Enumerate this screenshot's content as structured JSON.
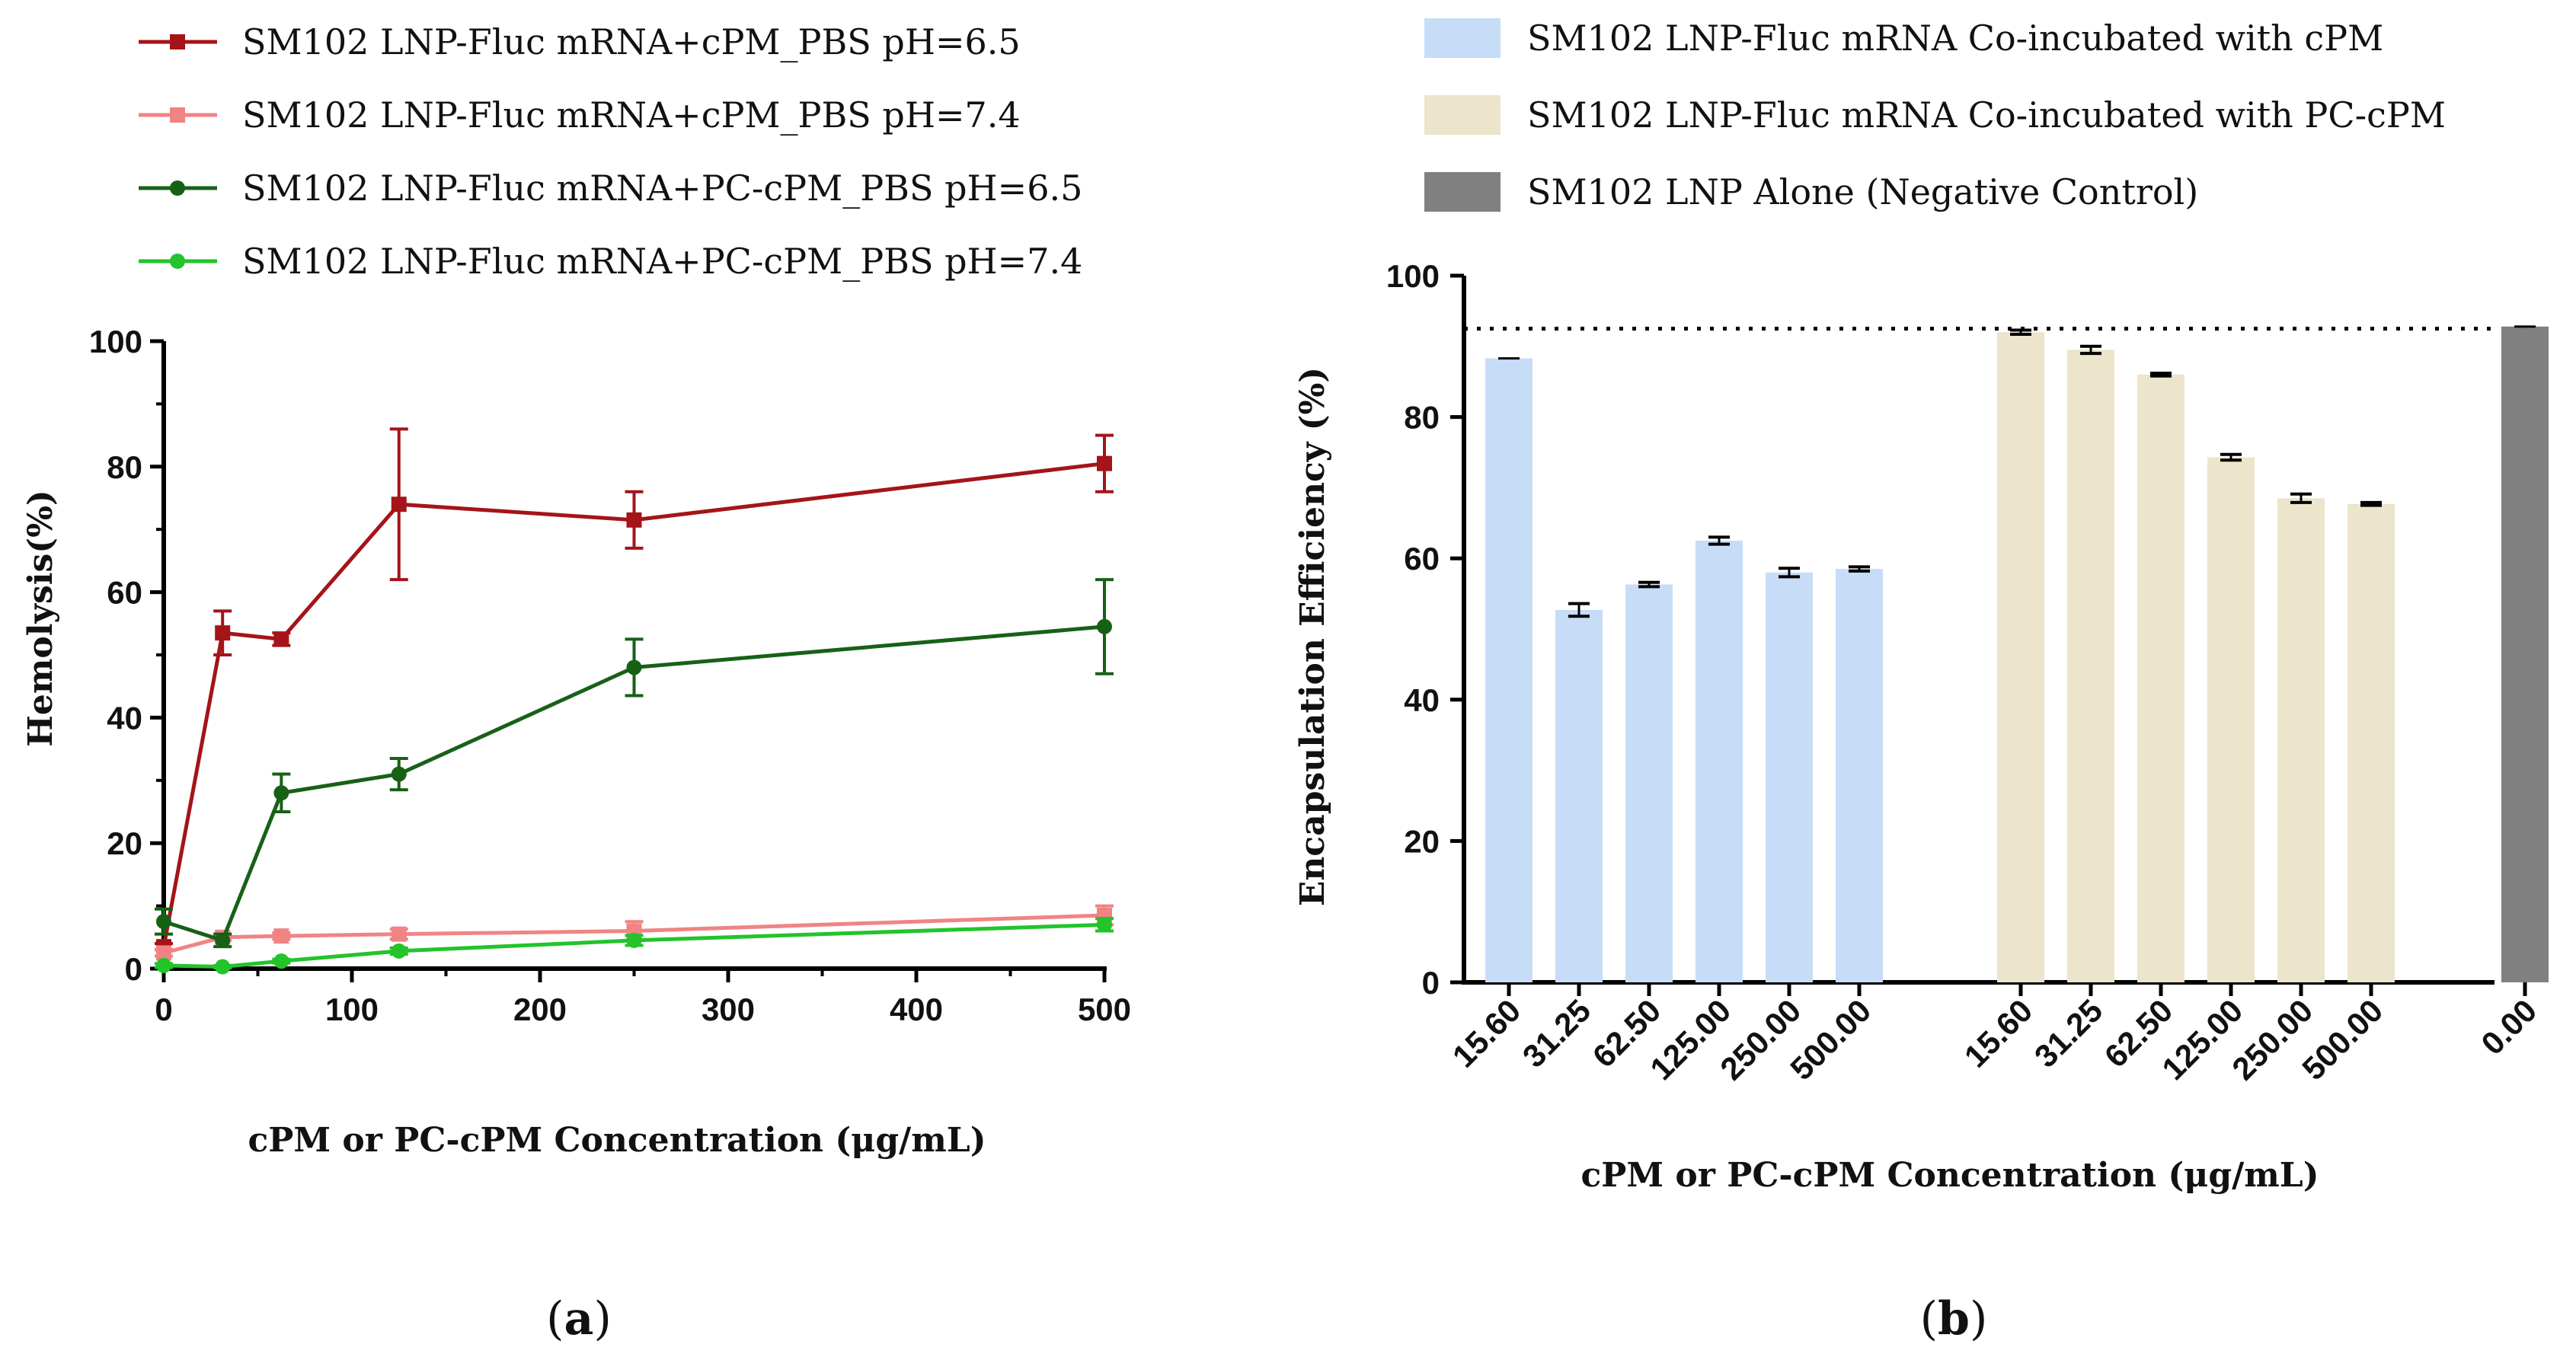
{
  "panels": {
    "a": "a",
    "b": "b"
  },
  "chart_data": [
    {
      "type": "line",
      "panel": "a",
      "xlabel": "cPM or PC-cPM Concentration (μg/mL)",
      "ylabel": "Hemolysis(%)",
      "xlim": [
        0,
        500
      ],
      "ylim": [
        0,
        100
      ],
      "xticks": [
        0,
        100,
        200,
        300,
        400,
        500
      ],
      "yticks": [
        0,
        20,
        40,
        60,
        80,
        100
      ],
      "x": [
        0,
        31.25,
        62.5,
        125,
        250,
        500
      ],
      "series": [
        {
          "name": "SM102 LNP-Fluc mRNA+cPM_PBS pH=6.5",
          "marker": "square",
          "color": "#a41419",
          "values": [
            3.5,
            53.5,
            52.5,
            74.0,
            71.5,
            80.5
          ],
          "errors": [
            0.5,
            3.5,
            1.0,
            12.0,
            4.5,
            4.5
          ]
        },
        {
          "name": "SM102 LNP-Fluc mRNA+cPM_PBS pH=7.4",
          "marker": "square",
          "color": "#f08484",
          "values": [
            2.5,
            5.0,
            5.2,
            5.5,
            6.0,
            8.5
          ],
          "errors": [
            0.5,
            0.5,
            0.5,
            0.8,
            1.5,
            1.5
          ]
        },
        {
          "name": "SM102 LNP-Fluc mRNA+PC-cPM_PBS pH=6.5",
          "marker": "circle",
          "color": "#176117",
          "values": [
            7.5,
            4.5,
            28.0,
            31.0,
            48.0,
            54.5
          ],
          "errors": [
            2.0,
            1.0,
            3.0,
            2.5,
            4.5,
            7.5
          ]
        },
        {
          "name": "SM102 LNP-Fluc mRNA+PC-cPM_PBS pH=7.4",
          "marker": "circle",
          "color": "#22c42a",
          "values": [
            0.5,
            0.3,
            1.2,
            2.8,
            4.5,
            7.0
          ],
          "errors": [
            0.3,
            0.2,
            0.3,
            0.5,
            0.8,
            1.0
          ]
        }
      ]
    },
    {
      "type": "bar",
      "panel": "b",
      "xlabel": "cPM or PC-cPM Concentration (μg/mL)",
      "ylabel": "Encapsulation Efficiency (%)",
      "ylim": [
        0,
        100
      ],
      "yticks": [
        0,
        20,
        40,
        60,
        80,
        100
      ],
      "reference_line": 92.5,
      "groups": [
        {
          "name": "SM102 LNP-Fluc mRNA Co-incubated with cPM",
          "color": "#c7dcf7",
          "categories": [
            "15.60",
            "31.25",
            "62.50",
            "125.00",
            "250.00",
            "500.00"
          ],
          "values": [
            88.3,
            52.7,
            56.3,
            62.5,
            58.0,
            58.5
          ],
          "errors": [
            0,
            0.9,
            0.3,
            0.5,
            0.6,
            0.3
          ]
        },
        {
          "name": "SM102 LNP-Fluc mRNA Co-incubated with PC-cPM",
          "color": "#ece4cb",
          "categories": [
            "15.60",
            "31.25",
            "62.50",
            "125.00",
            "250.00",
            "500.00"
          ],
          "values": [
            92.0,
            89.5,
            86.0,
            74.3,
            68.5,
            67.7
          ],
          "errors": [
            0.3,
            0.5,
            0.2,
            0.4,
            0.6,
            0.2
          ]
        },
        {
          "name": "SM102 LNP Alone (Negative Control)",
          "color": "#808080",
          "categories": [
            "0.00"
          ],
          "values": [
            92.8
          ],
          "errors": [
            0
          ]
        }
      ]
    }
  ]
}
